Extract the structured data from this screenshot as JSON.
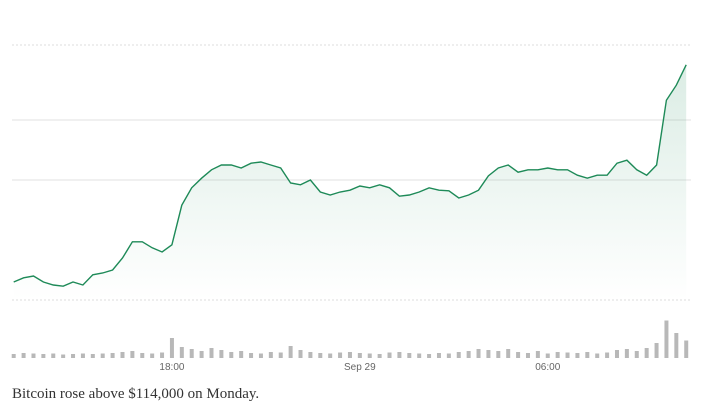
{
  "caption": "Bitcoin rose above $114,000 on Monday.",
  "chart_data": [
    {
      "type": "line",
      "categories": [
        null,
        null,
        null,
        null,
        null,
        null,
        null,
        null,
        null,
        null,
        null,
        null,
        null,
        null,
        null,
        null,
        "18:00",
        null,
        null,
        null,
        null,
        null,
        null,
        null,
        null,
        null,
        null,
        null,
        null,
        null,
        null,
        null,
        null,
        null,
        null,
        "Sep 29",
        null,
        null,
        null,
        null,
        null,
        null,
        null,
        null,
        null,
        null,
        null,
        null,
        null,
        null,
        null,
        null,
        null,
        null,
        "06:00",
        null,
        null,
        null,
        null,
        null,
        null,
        null,
        null,
        null,
        null,
        null,
        null,
        null,
        null
      ],
      "series": [
        {
          "color": "#1e8a58",
          "values": [
            110300,
            110370,
            110400,
            110300,
            110250,
            110230,
            110300,
            110250,
            110420,
            110450,
            110500,
            110700,
            110970,
            110970,
            110870,
            110800,
            110920,
            111580,
            111870,
            112030,
            112170,
            112250,
            112250,
            112200,
            112280,
            112300,
            112250,
            112200,
            111950,
            111920,
            112000,
            111800,
            111750,
            111800,
            111830,
            111900,
            111870,
            111920,
            111870,
            111730,
            111750,
            111800,
            111870,
            111830,
            111820,
            111700,
            111750,
            111830,
            112070,
            112200,
            112250,
            112130,
            112170,
            112170,
            112200,
            112170,
            112170,
            112080,
            112030,
            112080,
            112080,
            112280,
            112330,
            112170,
            112080,
            112250,
            113330,
            113580,
            113920
          ]
        }
      ],
      "ylim": [
        110000,
        114250
      ],
      "ygrid": [
        112000,
        113000
      ]
    },
    {
      "type": "bar",
      "color": "#b8b8b8",
      "values": [
        8,
        10,
        9,
        8,
        9,
        7,
        8,
        9,
        8,
        9,
        10,
        12,
        14,
        10,
        9,
        11,
        40,
        22,
        18,
        14,
        20,
        16,
        12,
        14,
        10,
        9,
        12,
        11,
        24,
        16,
        12,
        10,
        9,
        11,
        12,
        10,
        9,
        8,
        11,
        12,
        10,
        9,
        8,
        10,
        9,
        12,
        14,
        18,
        16,
        14,
        18,
        12,
        10,
        14,
        9,
        12,
        11,
        10,
        12,
        9,
        11,
        16,
        18,
        14,
        20,
        30,
        75,
        50,
        35
      ],
      "ylim": [
        0,
        100
      ]
    }
  ]
}
